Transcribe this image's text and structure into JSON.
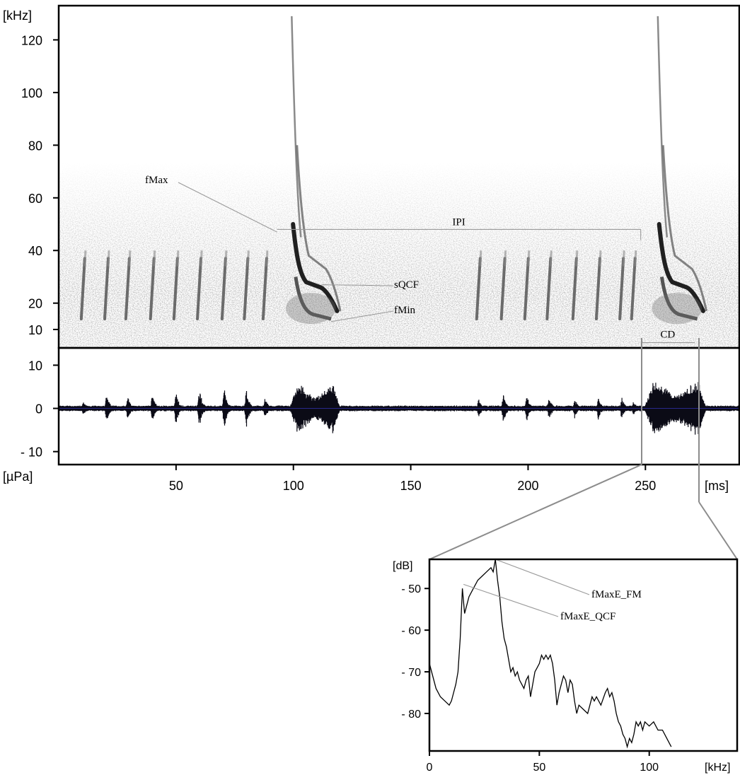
{
  "chart_data": [
    {
      "type": "spectrogram",
      "name": "spectrogram",
      "y_unit": "[kHz]",
      "y_ticks": [
        10,
        20,
        40,
        60,
        80,
        100,
        120
      ],
      "ylim": [
        3,
        133
      ],
      "xlim": [
        0,
        290
      ],
      "calls": [
        {
          "kind": "qcf",
          "t": [
            10.5,
            20.5,
            29.5,
            40,
            50,
            60,
            70.5,
            80,
            88,
            179,
            189.5,
            199.5,
            209,
            220,
            230,
            240,
            245
          ]
        },
        {
          "kind": "fm",
          "start": 92,
          "end": 120
        },
        {
          "kind": "fm",
          "start": 248,
          "end": 276
        }
      ],
      "annotations": [
        {
          "label": "fMax",
          "at": [
            93,
            47
          ]
        },
        {
          "label": "IPI",
          "from": [
            93,
            48
          ],
          "to": [
            248,
            48
          ]
        },
        {
          "label": "sQCF",
          "at": [
            112,
            27
          ]
        },
        {
          "label": "fMin",
          "at": [
            116,
            13
          ]
        },
        {
          "label": "CD",
          "from": [
            248,
            5
          ],
          "to": [
            271,
            5
          ]
        }
      ]
    },
    {
      "type": "line",
      "name": "oscillogram",
      "y_unit": "[µPa]",
      "x_unit": "[ms]",
      "y_ticks": [
        10,
        0,
        -10
      ],
      "y_tick_labels": [
        "10",
        "0",
        "- 10"
      ],
      "x_ticks": [
        50,
        100,
        150,
        200,
        250
      ],
      "ylim": [
        -13,
        14
      ],
      "xlim": [
        0,
        290
      ],
      "envelope": [
        {
          "t": 10.5,
          "amp": 2.0
        },
        {
          "t": 20.5,
          "amp": 3.5
        },
        {
          "t": 29.5,
          "amp": 3.0
        },
        {
          "t": 40,
          "amp": 3.6
        },
        {
          "t": 50,
          "amp": 4.2
        },
        {
          "t": 60,
          "amp": 5.0
        },
        {
          "t": 70.5,
          "amp": 5.4
        },
        {
          "t": 80,
          "amp": 4.6
        },
        {
          "t": 88,
          "amp": 2.5
        },
        {
          "t": 179,
          "amp": 2.4
        },
        {
          "t": 189.5,
          "amp": 3.6
        },
        {
          "t": 199.5,
          "amp": 3.3
        },
        {
          "t": 209,
          "amp": 3.0
        },
        {
          "t": 220,
          "amp": 2.5
        },
        {
          "t": 230,
          "amp": 3.2
        },
        {
          "t": 240,
          "amp": 2.8
        },
        {
          "t": 245,
          "amp": 2.0
        }
      ],
      "bursts": [
        {
          "start": 98,
          "end": 120,
          "amp": 5.8
        },
        {
          "start": 249,
          "end": 276,
          "amp": 6.5
        }
      ]
    },
    {
      "type": "line",
      "name": "power-spectrum",
      "y_unit": "[dB]",
      "x_unit": "[kHz]",
      "y_ticks": [
        -50,
        -60,
        -70,
        -80
      ],
      "y_tick_labels": [
        "- 50",
        "- 60",
        "- 70",
        "- 80"
      ],
      "x_ticks": [
        0,
        50,
        100
      ],
      "xlim": [
        0,
        140
      ],
      "ylim": [
        -89,
        -43
      ],
      "x": [
        0,
        1,
        3,
        5,
        7,
        9,
        10,
        11,
        12,
        13,
        14,
        15,
        16,
        17,
        18,
        20,
        22,
        24,
        26,
        28,
        29,
        30,
        31,
        32,
        33,
        34,
        35,
        36,
        37,
        38,
        39,
        40,
        41,
        42,
        43,
        44,
        45,
        46,
        47,
        48,
        49,
        50,
        51,
        52,
        53,
        54,
        55,
        56,
        57,
        58,
        59,
        60,
        61,
        62,
        63,
        64,
        65,
        66,
        67,
        68,
        70,
        72,
        74,
        75,
        76,
        78,
        80,
        81,
        82,
        83,
        84,
        85,
        86,
        87,
        88,
        89,
        90,
        91,
        92,
        93,
        94,
        95,
        96,
        97,
        98,
        100,
        102,
        104,
        106,
        108,
        110
      ],
      "y": [
        -68,
        -70,
        -74,
        -76,
        -77,
        -78,
        -77,
        -75,
        -73,
        -70,
        -62,
        -50,
        -56,
        -54,
        -52,
        -50,
        -48,
        -47,
        -46,
        -45,
        -46,
        -43,
        -48,
        -52,
        -58,
        -62,
        -64,
        -67,
        -70,
        -69,
        -71,
        -70,
        -72,
        -73,
        -74,
        -72,
        -71,
        -76,
        -73,
        -70,
        -69,
        -68,
        -66,
        -67,
        -66,
        -67,
        -66,
        -68,
        -72,
        -78,
        -75,
        -73,
        -71,
        -72,
        -75,
        -72,
        -73,
        -77,
        -80,
        -78,
        -79,
        -80,
        -76,
        -77,
        -76,
        -78,
        -75,
        -74,
        -76,
        -75,
        -77,
        -80,
        -82,
        -83,
        -85,
        -86,
        -88,
        -86,
        -87,
        -85,
        -82,
        -83,
        -82,
        -84,
        -82,
        -83,
        -82,
        -84,
        -84,
        -86,
        -88
      ],
      "annotations": [
        {
          "label": "fMaxE_FM",
          "at": [
            30,
            -43
          ]
        },
        {
          "label": "fMaxE_QCF",
          "at": [
            15.5,
            -49
          ]
        }
      ]
    }
  ]
}
